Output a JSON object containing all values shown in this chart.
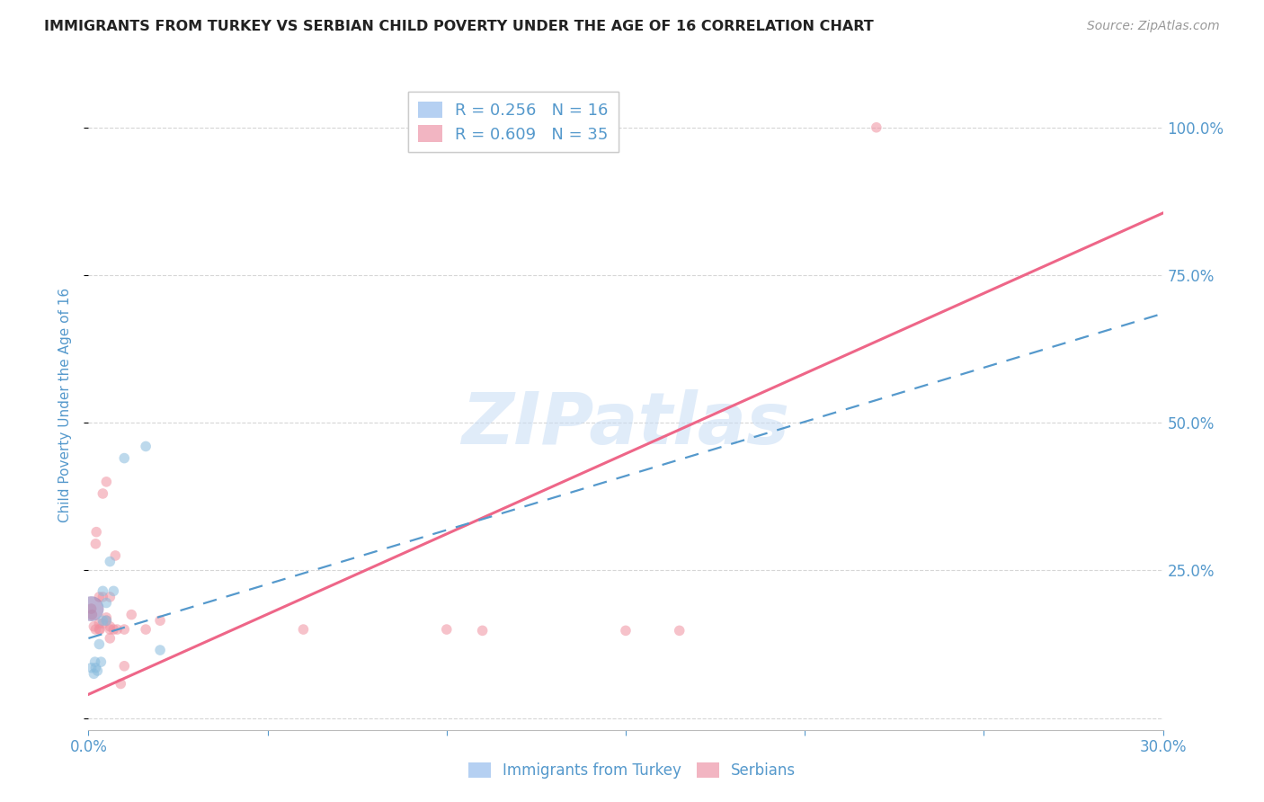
{
  "title": "IMMIGRANTS FROM TURKEY VS SERBIAN CHILD POVERTY UNDER THE AGE OF 16 CORRELATION CHART",
  "source": "Source: ZipAtlas.com",
  "ylabel_label": "Child Poverty Under the Age of 16",
  "xmin": 0.0,
  "xmax": 0.3,
  "ymin": -0.02,
  "ymax": 1.08,
  "legend_entries": [
    {
      "label": "R = 0.256   N = 16",
      "color": "#a8c8f0"
    },
    {
      "label": "R = 0.609   N = 35",
      "color": "#f0a8b8"
    }
  ],
  "legend_bottom": [
    "Immigrants from Turkey",
    "Serbians"
  ],
  "turkey_scatter": [
    [
      0.0008,
      0.085
    ],
    [
      0.0015,
      0.075
    ],
    [
      0.0018,
      0.095
    ],
    [
      0.002,
      0.085
    ],
    [
      0.0025,
      0.08
    ],
    [
      0.003,
      0.125
    ],
    [
      0.0035,
      0.095
    ],
    [
      0.004,
      0.165
    ],
    [
      0.004,
      0.215
    ],
    [
      0.005,
      0.195
    ],
    [
      0.005,
      0.165
    ],
    [
      0.006,
      0.265
    ],
    [
      0.007,
      0.215
    ],
    [
      0.01,
      0.44
    ],
    [
      0.016,
      0.46
    ],
    [
      0.02,
      0.115
    ]
  ],
  "serbian_scatter": [
    [
      0.0008,
      0.185
    ],
    [
      0.001,
      0.175
    ],
    [
      0.0015,
      0.155
    ],
    [
      0.002,
      0.15
    ],
    [
      0.002,
      0.295
    ],
    [
      0.0022,
      0.315
    ],
    [
      0.003,
      0.15
    ],
    [
      0.003,
      0.16
    ],
    [
      0.003,
      0.205
    ],
    [
      0.0032,
      0.15
    ],
    [
      0.004,
      0.205
    ],
    [
      0.004,
      0.16
    ],
    [
      0.004,
      0.38
    ],
    [
      0.005,
      0.165
    ],
    [
      0.005,
      0.17
    ],
    [
      0.005,
      0.4
    ],
    [
      0.006,
      0.15
    ],
    [
      0.006,
      0.135
    ],
    [
      0.006,
      0.205
    ],
    [
      0.006,
      0.155
    ],
    [
      0.007,
      0.15
    ],
    [
      0.0075,
      0.275
    ],
    [
      0.008,
      0.15
    ],
    [
      0.009,
      0.058
    ],
    [
      0.01,
      0.15
    ],
    [
      0.01,
      0.088
    ],
    [
      0.012,
      0.175
    ],
    [
      0.016,
      0.15
    ],
    [
      0.02,
      0.165
    ],
    [
      0.06,
      0.15
    ],
    [
      0.1,
      0.15
    ],
    [
      0.11,
      0.148
    ],
    [
      0.15,
      0.148
    ],
    [
      0.165,
      0.148
    ],
    [
      0.22,
      1.0
    ]
  ],
  "turkey_big_dot": [
    0.0008,
    0.185
  ],
  "turkey_big_dot_size": 400,
  "turkey_big_dot_color": "#9988bb",
  "serbian_big_dot": [
    0.0008,
    0.185
  ],
  "serbian_big_dot_size": 380,
  "serbian_big_dot_color": "#e890a0",
  "turkey_color": "#88bbdd",
  "serbian_color": "#f090a0",
  "turkey_trendline_color": "#5599cc",
  "serbian_trendline_color": "#ee6688",
  "bg_color": "#ffffff",
  "grid_color": "#cccccc",
  "title_color": "#222222",
  "axis_label_color": "#5599cc",
  "watermark_color": "#c8ddf5",
  "marker_size": 70,
  "turkish_trendline": [
    [
      0.0,
      0.135
    ],
    [
      0.3,
      0.685
    ]
  ],
  "serbian_trendline": [
    [
      0.0,
      0.04
    ],
    [
      0.3,
      0.855
    ]
  ],
  "yticks": [
    0.0,
    0.25,
    0.5,
    0.75,
    1.0
  ],
  "ytick_labels": [
    "",
    "25.0%",
    "50.0%",
    "75.0%",
    "100.0%"
  ],
  "xticks": [
    0.0,
    0.05,
    0.1,
    0.15,
    0.2,
    0.25,
    0.3
  ],
  "xtick_labels": [
    "0.0%",
    "",
    "",
    "",
    "",
    "",
    "30.0%"
  ]
}
